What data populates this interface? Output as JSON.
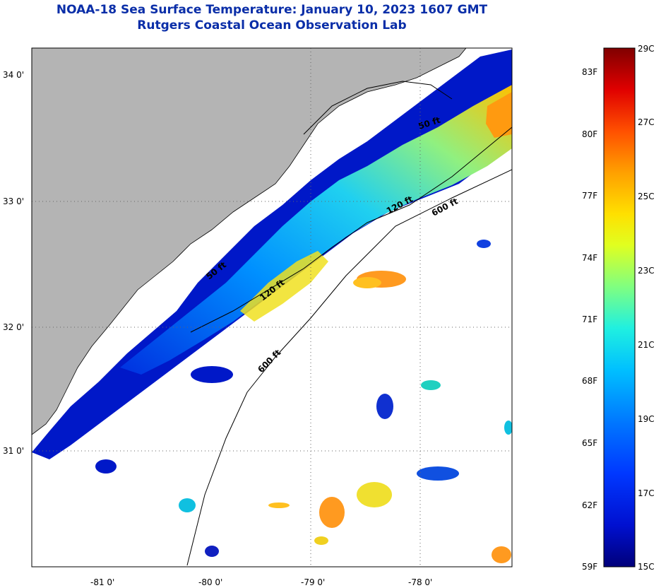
{
  "title": {
    "line1": "NOAA-18 Sea Surface Temperature:  January 10, 2023 1607 GMT",
    "line2": "Rutgers Coastal Ocean Observation Lab"
  },
  "map": {
    "lat_labels": [
      "34 0'",
      "33 0'",
      "32 0'",
      "31 0'"
    ],
    "lon_labels": [
      "-81 0'",
      "-80 0'",
      "-79 0'",
      "-78 0'"
    ],
    "isobaths": [
      "50 ft",
      "120 ft",
      "600 ft",
      "120 ft",
      "600 ft",
      "50 ft"
    ]
  },
  "colorbar": {
    "fahrenheit_labels": [
      "83F",
      "80F",
      "77F",
      "74F",
      "71F",
      "68F",
      "65F",
      "62F",
      "59F"
    ],
    "celsius_labels": [
      "29C",
      "27C",
      "25C",
      "23C",
      "21C",
      "19C",
      "17C",
      "15C"
    ],
    "colors": [
      "#800000",
      "#c00000",
      "#ff2000",
      "#ff7000",
      "#ffb000",
      "#ffee00",
      "#b8ff40",
      "#40ffc0",
      "#00d8ff",
      "#0090ff",
      "#0040ff",
      "#0010d0",
      "#000090"
    ]
  },
  "colors": {
    "land": "#b4b4b4",
    "ocean_cloud": "#ffffff",
    "title": "#0a2ea8"
  }
}
